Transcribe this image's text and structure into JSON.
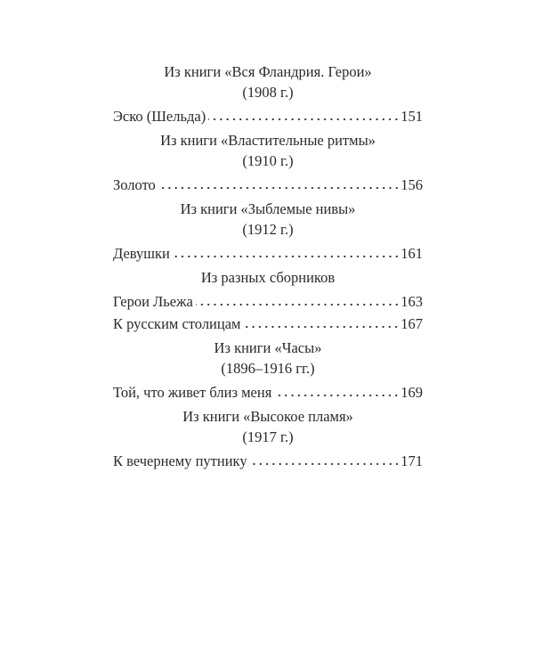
{
  "sections": [
    {
      "heading": "Из книги «Вся Фландрия. Герои»",
      "year": "(1908 г.)",
      "entries": [
        {
          "title": "Эско (Шельда)",
          "page": "151"
        }
      ]
    },
    {
      "heading": "Из книги «Властительные ритмы»",
      "year": "(1910 г.)",
      "entries": [
        {
          "title": "Золото",
          "page": "156"
        }
      ]
    },
    {
      "heading": "Из книги «Зыблемые нивы»",
      "year": "(1912 г.)",
      "entries": [
        {
          "title": "Девушки",
          "page": "161"
        }
      ]
    },
    {
      "heading": "Из разных сборников",
      "year": "",
      "entries": [
        {
          "title": "Герои Льежа",
          "page": "163"
        },
        {
          "title": "К русским столицам",
          "page": "167"
        }
      ]
    },
    {
      "heading": "Из книги «Часы»",
      "year": "(1896–1916 гг.)",
      "entries": [
        {
          "title": "Той, что живет близ меня",
          "page": "169"
        }
      ]
    },
    {
      "heading": "Из книги «Высокое пламя»",
      "year": "(1917 г.)",
      "entries": [
        {
          "title": "К вечернему путнику",
          "page": "171"
        }
      ]
    }
  ]
}
